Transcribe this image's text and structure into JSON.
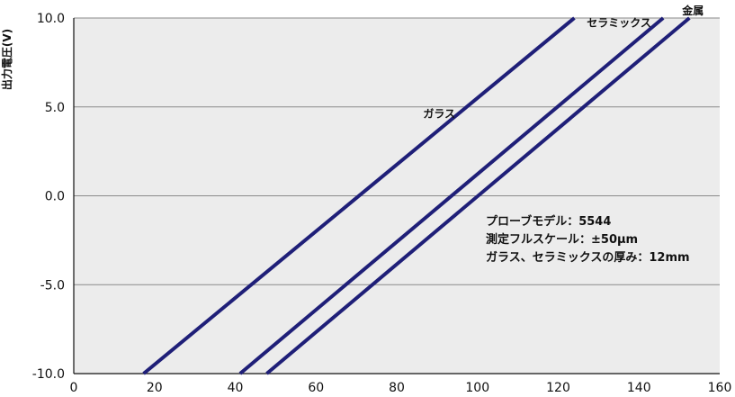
{
  "chart_data": {
    "type": "line",
    "ylabel": "出力電圧(V)",
    "xlabel": "",
    "xlim": [
      0,
      160
    ],
    "ylim": [
      -10,
      10
    ],
    "x_ticks": [
      "0",
      "20",
      "40",
      "60",
      "80",
      "100",
      "120",
      "140",
      "160"
    ],
    "y_ticks": [
      "10.0",
      "5.0",
      "0.0",
      "-5.0",
      "-10.0"
    ],
    "grid": "horizontal",
    "series": [
      {
        "name": "ガラス",
        "x": [
          17.3,
          124.0
        ],
        "y": [
          -10.0,
          10.0
        ]
      },
      {
        "name": "セラミックス",
        "x": [
          41.2,
          146.0
        ],
        "y": [
          -10.0,
          10.0
        ]
      },
      {
        "name": "金属",
        "x": [
          47.8,
          152.5
        ],
        "y": [
          -10.0,
          10.0
        ]
      }
    ],
    "annotations": [
      "プローブモデル：5544",
      "測定フルスケール：±50μm",
      "ガラス、セラミックスの厚み：12mm"
    ],
    "colors": {
      "line": "#1f1f78",
      "plot_bg": "#ececec",
      "grid": "#8a8a8a"
    }
  }
}
